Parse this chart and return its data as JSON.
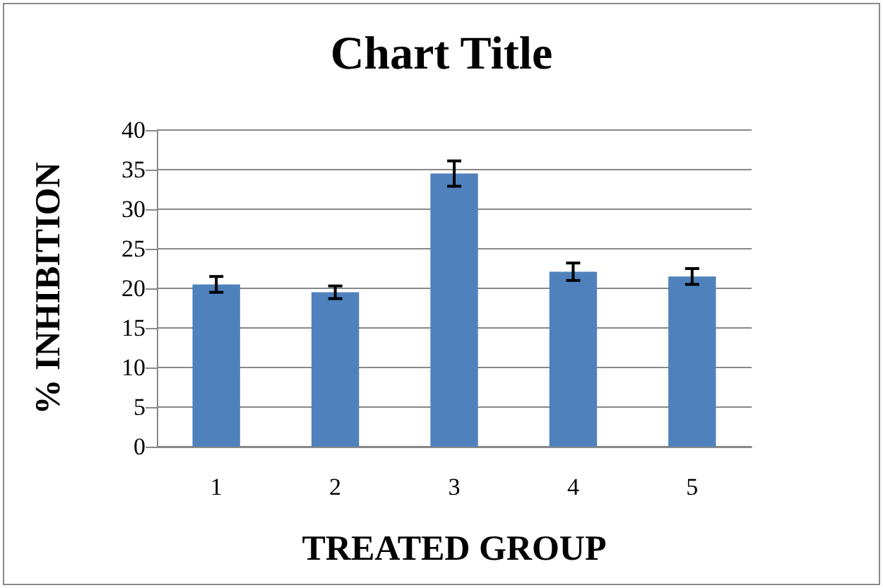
{
  "chart_data": {
    "type": "bar",
    "title": "Chart Title",
    "xlabel": "TREATED GROUP",
    "ylabel": "% INHIBITION",
    "categories": [
      "1",
      "2",
      "3",
      "4",
      "5"
    ],
    "values": [
      20.5,
      19.5,
      34.5,
      22.1,
      21.5
    ],
    "errors": [
      1.0,
      0.8,
      1.6,
      1.1,
      1.0
    ],
    "color": "#4f81bd",
    "ylim": [
      0,
      40
    ],
    "yticks": [
      0,
      5,
      10,
      15,
      20,
      25,
      30,
      35,
      40
    ],
    "grid": "y"
  }
}
